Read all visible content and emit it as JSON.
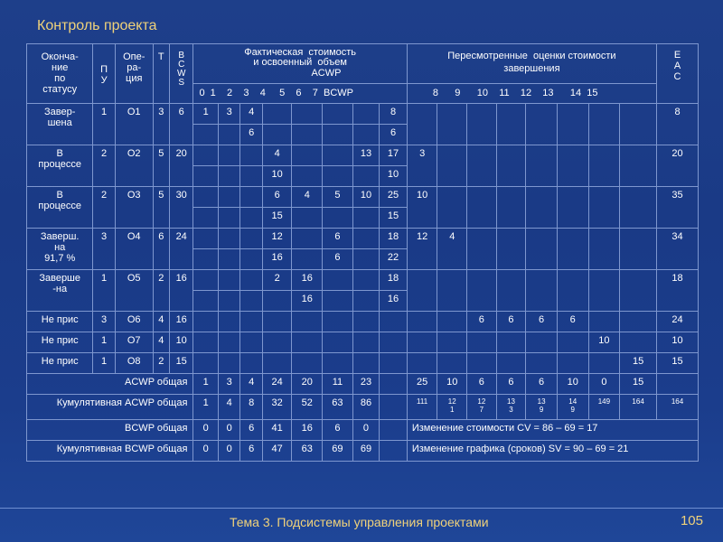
{
  "title": "Контроль проекта",
  "footer": {
    "topic": "Тема 3. Подсистемы управления проектами",
    "page": "105"
  },
  "header": {
    "col_status": "Оконча-\nние\nпо\nстатусу",
    "col_pu": "П\nУ",
    "col_op": "Опе-\nра-\nция",
    "col_t": "Т",
    "col_bcws": "B\nC\nW\nS",
    "actual_title": "Фактическая  стоимость\nи освоенный  объем",
    "acwp": "ACWP",
    "revised_title": "Пересмотренные  оценки стоимости\nзавершения",
    "eac": "Е\nА\nС",
    "sub_actual": "0  1    2    3    4     5    6    7  BCWP",
    "sub_revised": "8      9      10    11    12    13      14  15"
  },
  "rows": [
    {
      "status": "Завер-\nшена",
      "pu": "1",
      "op": "О1",
      "t": "3",
      "bcws": "6",
      "eac": "8",
      "acwp": [
        "1",
        "3",
        "4",
        "",
        "",
        "",
        "",
        ""
      ],
      "acwp_total": "8",
      "bcwp": [
        "",
        "",
        "6",
        "",
        "",
        "",
        "",
        ""
      ],
      "bcwp_total": "6",
      "rev": [
        "",
        "",
        "",
        "",
        "",
        "",
        "",
        ""
      ]
    },
    {
      "status": "В\nпроцессе",
      "pu": "2",
      "op": "О2",
      "t": "5",
      "bcws": "20",
      "eac": "20",
      "acwp": [
        "",
        "",
        "",
        "4",
        "",
        "",
        "13",
        ""
      ],
      "acwp_total": "17",
      "bcwp": [
        "",
        "",
        "",
        "10",
        "",
        "",
        "",
        ""
      ],
      "bcwp_total": "10",
      "rev": [
        "3",
        "",
        "",
        "",
        "",
        "",
        "",
        ""
      ]
    },
    {
      "status": "В\nпроцессе",
      "pu": "2",
      "op": "О3",
      "t": "5",
      "bcws": "30",
      "eac": "35",
      "acwp": [
        "",
        "",
        "",
        "6",
        "4",
        "5",
        "10",
        ""
      ],
      "acwp_total": "25",
      "bcwp": [
        "",
        "",
        "",
        "15",
        "",
        "",
        "",
        ""
      ],
      "bcwp_total": "15",
      "rev": [
        "10",
        "",
        "",
        "",
        "",
        "",
        "",
        ""
      ]
    },
    {
      "status": "Заверш.\nна\n91,7 %",
      "pu": "3",
      "op": "О4",
      "t": "6",
      "bcws": "24",
      "eac": "34",
      "acwp": [
        "",
        "",
        "",
        "12",
        "",
        "6",
        "",
        ""
      ],
      "acwp_total": "18",
      "bcwp": [
        "",
        "",
        "",
        "16",
        "",
        "6",
        "",
        ""
      ],
      "bcwp_total": "22",
      "rev": [
        "12",
        "4",
        "",
        "",
        "",
        "",
        "",
        ""
      ]
    },
    {
      "status": "Заверше\n-на",
      "pu": "1",
      "op": "О5",
      "t": "2",
      "bcws": "16",
      "eac": "18",
      "acwp": [
        "",
        "",
        "",
        "2",
        "16",
        "",
        "",
        ""
      ],
      "acwp_total": "18",
      "bcwp": [
        "",
        "",
        "",
        "",
        "16",
        "",
        "",
        ""
      ],
      "bcwp_total": "16",
      "rev": [
        "",
        "",
        "",
        "",
        "",
        "",
        "",
        ""
      ]
    }
  ],
  "single_rows": [
    {
      "status": "Не прис",
      "pu": "3",
      "op": "О6",
      "t": "4",
      "bcws": "16",
      "eac": "24",
      "rev": [
        "",
        "",
        "6",
        "6",
        "6",
        "6",
        "",
        ""
      ]
    },
    {
      "status": "Не прис",
      "pu": "1",
      "op": "О7",
      "t": "4",
      "bcws": "10",
      "eac": "10",
      "rev": [
        "",
        "",
        "",
        "",
        "",
        "",
        "10",
        ""
      ]
    },
    {
      "status": "Не прис",
      "pu": "1",
      "op": "О8",
      "t": "2",
      "bcws": "15",
      "eac": "15",
      "rev": [
        "",
        "",
        "",
        "",
        "",
        "",
        "",
        "15"
      ]
    }
  ],
  "summary": {
    "acwp_label": "ACWP общая",
    "acwp": [
      "1",
      "3",
      "4",
      "24",
      "20",
      "11",
      "23"
    ],
    "acwp_rev": [
      "25",
      "10",
      "6",
      "6",
      "6",
      "10",
      "0",
      "15"
    ],
    "cum_acwp_label": "Кумулятивная  ACWP общая",
    "cum_acwp": [
      "1",
      "4",
      "8",
      "32",
      "52",
      "63",
      "86"
    ],
    "cum_acwp_rev": [
      "111",
      "12\n1",
      "12\n7",
      "13\n3",
      "13\n9",
      "14\n9",
      "149",
      "164"
    ],
    "cum_acwp_eac": "164",
    "bcwp_label": "BCWP общая",
    "bcwp": [
      "0",
      "0",
      "6",
      "41",
      "16",
      "6",
      "0"
    ],
    "cv_note": "Изменение  стоимости  CV = 86 – 69 = 17",
    "cum_bcwp_label": "Кумулятивная  BCWP общая",
    "cum_bcwp": [
      "0",
      "0",
      "6",
      "47",
      "63",
      "69",
      "69"
    ],
    "sv_note": "Изменение  графика  (сроков)  SV = 90 – 69 = 21"
  }
}
